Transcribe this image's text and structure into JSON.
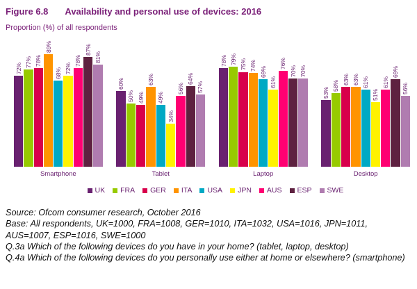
{
  "header": {
    "figure_label": "Figure 6.8",
    "title": "Availability and personal use of devices: 2016",
    "subtitle": "Proportion (%) of all respondents"
  },
  "chart_data": {
    "type": "bar",
    "categories": [
      "Smartphone",
      "Tablet",
      "Laptop",
      "Desktop"
    ],
    "series": [
      {
        "name": "UK",
        "color": "#692170",
        "values": [
          72,
          60,
          78,
          53
        ]
      },
      {
        "name": "FRA",
        "color": "#97CA00",
        "values": [
          77,
          50,
          79,
          58
        ]
      },
      {
        "name": "GER",
        "color": "#D8004B",
        "values": [
          78,
          49,
          75,
          63
        ]
      },
      {
        "name": "ITA",
        "color": "#FF9400",
        "values": [
          89,
          63,
          74,
          63
        ]
      },
      {
        "name": "USA",
        "color": "#00A9C4",
        "values": [
          68,
          49,
          69,
          61
        ]
      },
      {
        "name": "JPN",
        "color": "#FFF200",
        "values": [
          72,
          34,
          61,
          51
        ]
      },
      {
        "name": "AUS",
        "color": "#FF0072",
        "values": [
          78,
          56,
          76,
          61
        ]
      },
      {
        "name": "ESP",
        "color": "#5E2140",
        "values": [
          87,
          64,
          70,
          69
        ]
      },
      {
        "name": "SWE",
        "color": "#B07CB0",
        "values": [
          81,
          57,
          70,
          56
        ]
      }
    ],
    "value_suffix": "%",
    "ylim": [
      0,
      100
    ],
    "grid": false,
    "legend_position": "bottom",
    "text_color": "#692170"
  },
  "footer": {
    "lines": [
      "Source: Ofcom consumer research, October 2016",
      "Base: All respondents, UK=1000, FRA=1008, GER=1010, ITA=1032, USA=1016, JPN=1011, AUS=1007, ESP=1016, SWE=1000",
      "Q.3a Which of the following devices do you have in your home? (tablet, laptop, desktop)",
      "Q.4a Which of the following devices do you personally use either at home or elsewhere? (smartphone)"
    ]
  }
}
